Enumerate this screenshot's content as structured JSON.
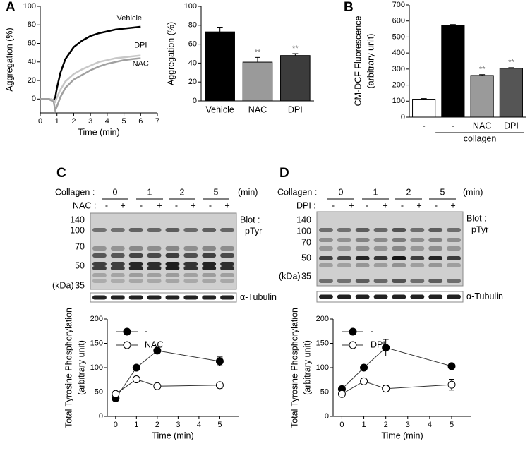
{
  "panels": [
    "A",
    "B",
    "C",
    "D"
  ],
  "chart_data": [
    {
      "type": "line",
      "xlabel": "Time (min)",
      "ylabel": [
        "Aggregation (%)"
      ],
      "x": [
        0,
        0.5,
        0.8,
        0.9,
        1.0,
        1.2,
        1.5,
        2,
        2.5,
        3,
        3.5,
        4,
        4.5,
        5,
        5.5,
        6
      ],
      "series": [
        {
          "name": "Vehicle",
          "color": "#000000",
          "values": [
            0,
            0,
            -1,
            2,
            12,
            28,
            43,
            56,
            63,
            68,
            71,
            73,
            75,
            76,
            77,
            78
          ]
        },
        {
          "name": "DPI",
          "color": "#c8c8c8",
          "values": [
            0,
            0,
            -1,
            -3,
            2,
            10,
            19,
            27,
            32,
            36,
            40,
            42,
            44,
            45,
            46,
            47
          ]
        },
        {
          "name": "NAC",
          "color": "#a0a0a0",
          "values": [
            0,
            0,
            -3,
            -12,
            -8,
            2,
            12,
            21,
            26,
            31,
            35,
            38,
            40,
            42,
            43,
            44
          ]
        }
      ],
      "xlim": [
        0,
        7
      ],
      "xticks": [
        0,
        1,
        2,
        3,
        4,
        5,
        6,
        7
      ],
      "ylim": [
        -15,
        100
      ],
      "yticks": [
        0,
        20,
        40,
        60,
        80,
        100
      ]
    },
    {
      "type": "bar",
      "ylabel": [
        "Aggregation (%)"
      ],
      "categories": [
        "Vehicle",
        "NAC",
        "DPI"
      ],
      "values": [
        73,
        41,
        48
      ],
      "errors": [
        5,
        5,
        2
      ],
      "colors": [
        "#000000",
        "#9a9a9a",
        "#3c3c3c"
      ],
      "annotations": [
        null,
        "**",
        "**"
      ],
      "ylim": [
        0,
        100
      ],
      "yticks": [
        0,
        20,
        40,
        60,
        80,
        100
      ]
    },
    {
      "type": "bar",
      "ylabel": [
        "CM-DCF Fluorescence",
        "(arbitrary unit)"
      ],
      "categories": [
        "-",
        "-",
        "NAC",
        "DPI"
      ],
      "values": [
        112,
        572,
        260,
        305
      ],
      "errors": [
        4,
        6,
        5,
        4
      ],
      "colors": [
        "#ffffff",
        "#000000",
        "#9a9a9a",
        "#555555"
      ],
      "annotations": [
        null,
        null,
        "**",
        "**"
      ],
      "group_label": "collagen",
      "ylim": [
        0,
        700
      ],
      "yticks": [
        0,
        100,
        200,
        300,
        400,
        500,
        600,
        700
      ]
    },
    {
      "type": "line",
      "markers": true,
      "xlabel": "Time (min)",
      "ylabel": [
        "Total Tyrosine Phosphorylation",
        "(arbitrary unit)"
      ],
      "x": [
        0,
        1,
        2,
        5
      ],
      "series": [
        {
          "name": "-",
          "color": "#000000",
          "values": [
            37,
            100,
            135,
            113
          ],
          "errors": [
            null,
            null,
            5,
            9
          ]
        },
        {
          "name": "NAC",
          "color": "#ffffff",
          "values": [
            46,
            76,
            62,
            64
          ],
          "errors": [
            null,
            null,
            null,
            6
          ]
        }
      ],
      "xlim": [
        -0.4,
        5.9
      ],
      "xticks": [
        0,
        1,
        2,
        3,
        4,
        5
      ],
      "ylim": [
        0,
        200
      ],
      "yticks": [
        0,
        50,
        100,
        150,
        200
      ]
    },
    {
      "type": "line",
      "markers": true,
      "xlabel": "Time (min)",
      "ylabel": [
        "Total Tyrosine Phosphorylation",
        "(arbitrary unit)"
      ],
      "x": [
        0,
        1,
        2,
        5
      ],
      "series": [
        {
          "name": "-",
          "color": "#000000",
          "values": [
            56,
            100,
            141,
            103
          ],
          "errors": [
            5,
            null,
            17,
            null
          ]
        },
        {
          "name": "DPI",
          "color": "#ffffff",
          "values": [
            46,
            72,
            57,
            65
          ],
          "errors": [
            null,
            null,
            6,
            11
          ]
        }
      ],
      "xlim": [
        -0.4,
        5.9
      ],
      "xticks": [
        0,
        1,
        2,
        3,
        4,
        5
      ],
      "ylim": [
        0,
        200
      ],
      "yticks": [
        0,
        50,
        100,
        150,
        200
      ]
    }
  ],
  "blots": [
    {
      "header": "Collagen :",
      "times": [
        "0",
        "1",
        "2",
        "5"
      ],
      "time_unit": "(min)",
      "treatment": "NAC :",
      "signs": [
        "-",
        "+",
        "-",
        "+",
        "-",
        "+",
        "-",
        "+"
      ],
      "markers": [
        "140",
        "100",
        "70",
        "50",
        "35"
      ],
      "marker_unit": "(kDa)",
      "blot": "Blot :",
      "target": "pTyr",
      "loading": "α-Tubulin"
    },
    {
      "header": "Collagen :",
      "times": [
        "0",
        "1",
        "2",
        "5"
      ],
      "time_unit": "(min)",
      "treatment": "DPI :",
      "signs": [
        "-",
        "+",
        "-",
        "+",
        "-",
        "+",
        "-",
        "+"
      ],
      "markers": [
        "140",
        "100",
        "70",
        "50",
        "35"
      ],
      "marker_unit": "(kDa)",
      "blot": "Blot :",
      "target": "pTyr",
      "loading": "α-Tubulin"
    }
  ]
}
